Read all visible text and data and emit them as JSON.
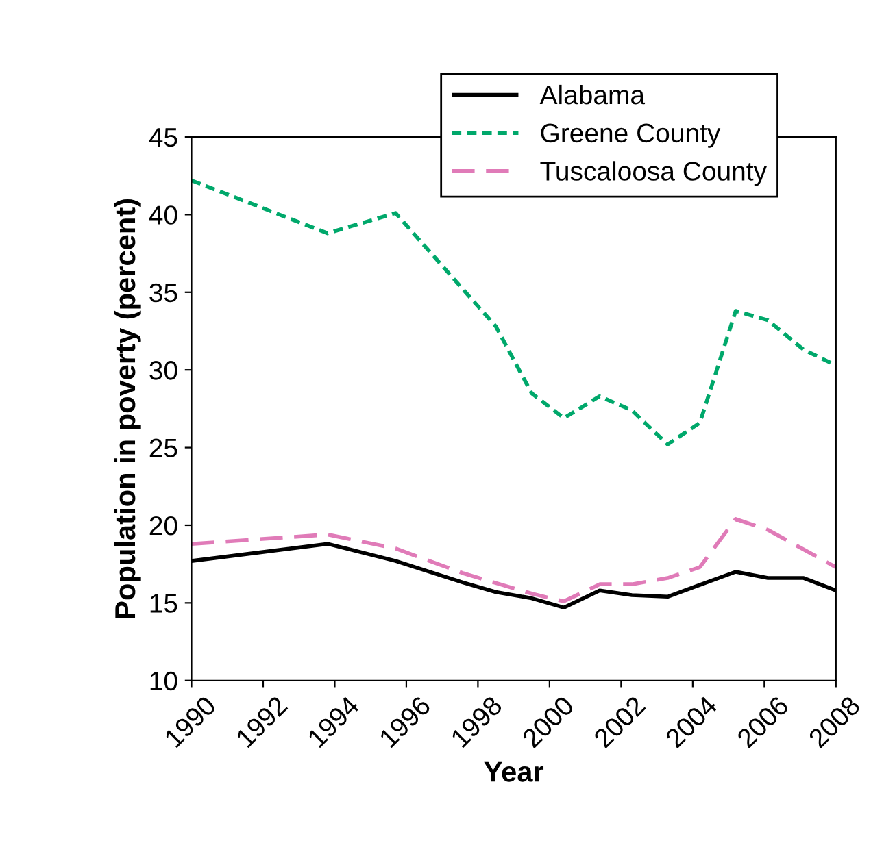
{
  "chart_data": {
    "type": "line",
    "xlabel": "Year",
    "ylabel": "Population in poverty (percent)",
    "xlim": [
      1990,
      2008
    ],
    "xticks": [
      1990,
      1992,
      1994,
      1996,
      1998,
      2000,
      2002,
      2004,
      2006,
      2008
    ],
    "ylim": [
      10,
      45
    ],
    "yticks": [
      10,
      15,
      20,
      25,
      30,
      35,
      40,
      45
    ],
    "grid": false,
    "legend": "top right",
    "marker": "none",
    "series": [
      {
        "name": "Alabama",
        "color": "#000000",
        "line_style": "solid",
        "x": [
          1990,
          1993.8,
          1995.7,
          1997.6,
          1998.5,
          1999.5,
          2000.4,
          2001.4,
          2002.3,
          2003.3,
          2005.2,
          2006.1,
          2007.1,
          2008
        ],
        "values": [
          17.7,
          18.8,
          17.7,
          16.3,
          15.7,
          15.3,
          14.7,
          15.8,
          15.5,
          15.4,
          17.0,
          16.6,
          16.6,
          15.8
        ]
      },
      {
        "name": "Greene County",
        "color": "#00a86b",
        "line_style": "dotted",
        "x": [
          1990,
          1993.8,
          1995.7,
          1998.5,
          1999.5,
          2000.4,
          2001.4,
          2002.3,
          2003.3,
          2004.2,
          2005.2,
          2006.1,
          2007.1,
          2008
        ],
        "values": [
          42.2,
          38.8,
          40.1,
          32.8,
          28.5,
          26.9,
          28.3,
          27.4,
          25.2,
          26.6,
          33.8,
          33.2,
          31.3,
          30.3
        ]
      },
      {
        "name": "Tuscaloosa County",
        "color": "#e07bb8",
        "line_style": "dashed",
        "x": [
          1990,
          1993.8,
          1995.7,
          1997.6,
          1999.5,
          2000.4,
          2001.4,
          2002.3,
          2003.3,
          2004.2,
          2005.2,
          2006.1,
          2008
        ],
        "values": [
          18.8,
          19.4,
          18.5,
          16.9,
          15.6,
          15.1,
          16.2,
          16.2,
          16.6,
          17.3,
          20.4,
          19.7,
          17.3
        ]
      }
    ]
  }
}
